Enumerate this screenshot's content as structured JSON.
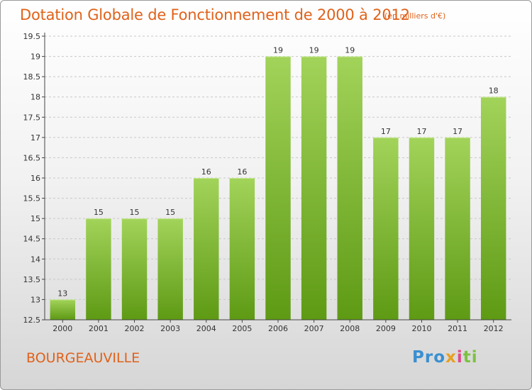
{
  "title": "Dotation Globale de Fonctionnement de 2000 à 2012",
  "units_note": "(en milliers d'€)",
  "commune": "BOURGEAUVILLE",
  "logo": {
    "p1": "Pro",
    "p2": "x",
    "p3": "i",
    "p4": "ti"
  },
  "colors": {
    "title": "#e0621a",
    "bar_top": "#a2d35a",
    "bar_bottom": "#5e9a14",
    "grid": "#c8c8c8"
  },
  "chart_data": {
    "type": "bar",
    "categories": [
      "2000",
      "2001",
      "2002",
      "2003",
      "2004",
      "2005",
      "2006",
      "2007",
      "2008",
      "2009",
      "2010",
      "2011",
      "2012"
    ],
    "values": [
      13,
      15,
      15,
      15,
      16,
      16,
      19,
      19,
      19,
      17,
      17,
      17,
      18
    ],
    "data_labels": [
      "13",
      "15",
      "15",
      "15",
      "16",
      "16",
      "19",
      "19",
      "19",
      "17",
      "17",
      "17",
      "18"
    ],
    "ylim": [
      12.5,
      19.5
    ],
    "yticks": [
      12.5,
      13,
      13.5,
      14,
      14.5,
      15,
      15.5,
      16,
      16.5,
      17,
      17.5,
      18,
      18.5,
      19,
      19.5
    ],
    "ytick_labels": [
      "12.5",
      "13",
      "13.5",
      "14",
      "14.5",
      "15",
      "15.5",
      "16",
      "16.5",
      "17",
      "17.5",
      "18",
      "18.5",
      "19",
      "19.5"
    ],
    "grid": true,
    "xlabel": "",
    "ylabel": ""
  }
}
